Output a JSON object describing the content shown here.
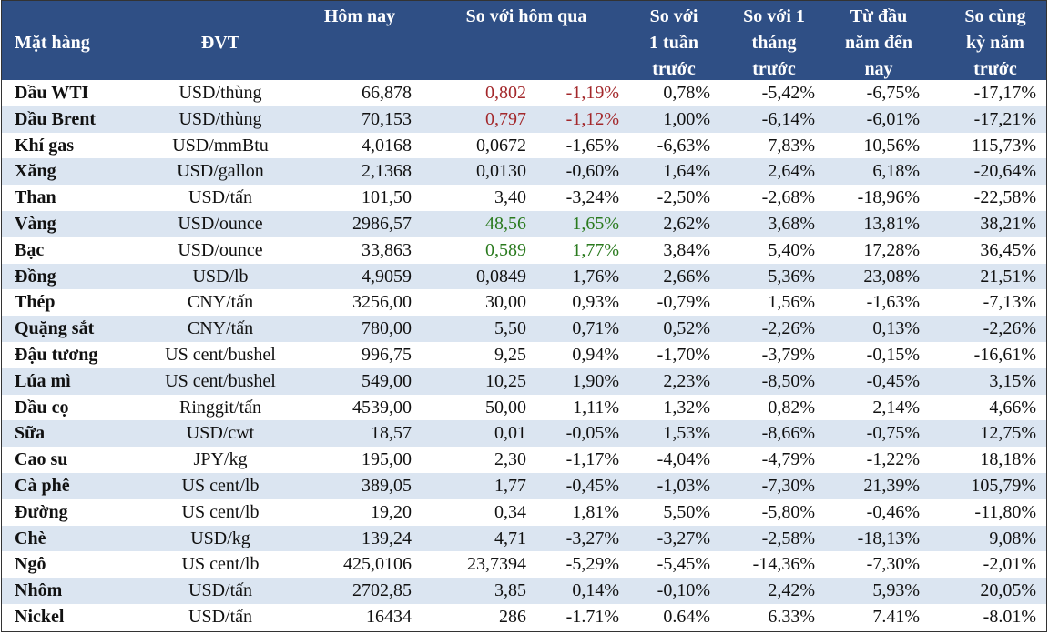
{
  "table": {
    "header": [
      [
        "Mặt hàng"
      ],
      [
        "ĐVT"
      ],
      [
        "Hôm nay"
      ],
      [
        "So với hôm qua"
      ],
      [
        "So với",
        "1 tuần",
        "trước"
      ],
      [
        "So với 1",
        "tháng",
        "trước"
      ],
      [
        "Từ đầu",
        "năm đến",
        "nay"
      ],
      [
        "So cùng",
        "kỳ năm",
        "trước"
      ]
    ],
    "rows": [
      {
        "cells": [
          "Dầu WTI",
          "USD/thùng",
          "66,878",
          "0,802",
          "-1,19%",
          "0,78%",
          "-5,42%",
          "-6,75%",
          "-17,17%"
        ],
        "color": "#a3282b"
      },
      {
        "cells": [
          "Dầu Brent",
          "USD/thùng",
          "70,153",
          "0,797",
          "-1,12%",
          "1,00%",
          "-6,14%",
          "-6,01%",
          "-17,21%"
        ],
        "color": "#a3282b"
      },
      {
        "cells": [
          "Khí gas",
          "USD/mmBtu",
          "4,0168",
          "0,0672",
          "-1,65%",
          "-6,63%",
          "7,83%",
          "10,56%",
          "115,73%"
        ]
      },
      {
        "cells": [
          "Xăng",
          "USD/gallon",
          "2,1368",
          "0,0130",
          "-0,60%",
          "1,64%",
          "2,64%",
          "6,18%",
          "-20,64%"
        ]
      },
      {
        "cells": [
          "Than",
          "USD/tấn",
          "101,50",
          "3,40",
          "-3,24%",
          "-2,50%",
          "-2,68%",
          "-18,96%",
          "-22,58%"
        ]
      },
      {
        "cells": [
          "Vàng",
          "USD/ounce",
          "2986,57",
          "48,56",
          "1,65%",
          "2,62%",
          "3,68%",
          "13,81%",
          "38,21%"
        ],
        "color": "#2a7a1e"
      },
      {
        "cells": [
          "Bạc",
          "USD/ounce",
          "33,863",
          "0,589",
          "1,77%",
          "3,84%",
          "5,40%",
          "17,28%",
          "36,45%"
        ],
        "color": "#2a7a1e"
      },
      {
        "cells": [
          "Đồng",
          "USD/lb",
          "4,9059",
          "0,0849",
          "1,76%",
          "2,66%",
          "5,36%",
          "23,08%",
          "21,51%"
        ]
      },
      {
        "cells": [
          "Thép",
          "CNY/tấn",
          "3256,00",
          "30,00",
          "0,93%",
          "-0,79%",
          "1,56%",
          "-1,63%",
          "-7,13%"
        ]
      },
      {
        "cells": [
          "Quặng sắt",
          "CNY/tấn",
          "780,00",
          "5,50",
          "0,71%",
          "0,52%",
          "-2,26%",
          "0,13%",
          "-2,26%"
        ]
      },
      {
        "cells": [
          "Đậu tương",
          "US cent/bushel",
          "996,75",
          "9,25",
          "0,94%",
          "-1,70%",
          "-3,79%",
          "-0,15%",
          "-16,61%"
        ]
      },
      {
        "cells": [
          "Lúa mì",
          "US cent/bushel",
          "549,00",
          "10,25",
          "1,90%",
          "2,23%",
          "-8,50%",
          "-0,45%",
          "3,15%"
        ]
      },
      {
        "cells": [
          "Dầu cọ",
          "Ringgit/tấn",
          "4539,00",
          "50,00",
          "1,11%",
          "1,32%",
          "0,82%",
          "2,14%",
          "4,66%"
        ]
      },
      {
        "cells": [
          "Sữa",
          "USD/cwt",
          "18,57",
          "0,01",
          "-0,05%",
          "1,53%",
          "-8,66%",
          "-0,75%",
          "12,75%"
        ]
      },
      {
        "cells": [
          "Cao su",
          "JPY/kg",
          "195,00",
          "2,30",
          "-1,17%",
          "-4,04%",
          "-4,79%",
          "-1,22%",
          "18,18%"
        ]
      },
      {
        "cells": [
          "Cà phê",
          "US cent/lb",
          "389,05",
          "1,77",
          "-0,45%",
          "-1,03%",
          "-7,30%",
          "21,39%",
          "105,79%"
        ]
      },
      {
        "cells": [
          "Đường",
          "US cent/lb",
          "19,20",
          "0,34",
          "1,81%",
          "5,50%",
          "-5,80%",
          "-0,46%",
          "-11,80%"
        ]
      },
      {
        "cells": [
          "Chè",
          "USD/kg",
          "139,24",
          "4,71",
          "-3,27%",
          "-3,27%",
          "-2,58%",
          "-18,13%",
          "9,08%"
        ]
      },
      {
        "cells": [
          "Ngô",
          "US cent/lb",
          "425,0106",
          "23,7394",
          "-5,29%",
          "-5,45%",
          "-14,36%",
          "-7,30%",
          "-2,01%"
        ]
      },
      {
        "cells": [
          "Nhôm",
          "USD/tấn",
          "2702,85",
          "3,85",
          "0,14%",
          "-0,10%",
          "2,42%",
          "5,93%",
          "20,05%"
        ]
      },
      {
        "cells": [
          "Nickel",
          "USD/tấn",
          "16434",
          "286",
          "-1.71%",
          "0.64%",
          "6.33%",
          "7.41%",
          "-8.01%"
        ]
      }
    ]
  }
}
